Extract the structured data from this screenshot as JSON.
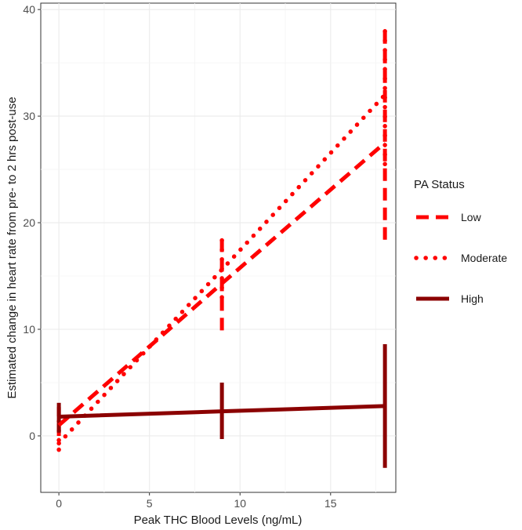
{
  "chart_data": {
    "type": "line",
    "title": "",
    "xlabel": "Peak THC Blood Levels (ng/mL)",
    "ylabel": "Estimated change in heart rate from pre- to 2 hrs post-use",
    "xlim": [
      -1,
      18.6
    ],
    "ylim": [
      -5.3,
      40.6
    ],
    "x_ticks": [
      0,
      5,
      10,
      15
    ],
    "y_ticks": [
      0,
      10,
      20,
      30,
      40
    ],
    "grid": true,
    "legend": {
      "title": "PA Status",
      "placement": "right",
      "entries": [
        "Low",
        "Moderate",
        "High"
      ]
    },
    "series": [
      {
        "name": "Low",
        "color": "#ff0000",
        "linestyle": "dashed",
        "x": [
          0,
          9,
          18
        ],
        "y": [
          1.0,
          14.3,
          27.5
        ],
        "error_bars": [
          [
            0,
            2.7
          ],
          [
            9.9,
            19.0
          ],
          [
            18.4,
            38.5
          ]
        ]
      },
      {
        "name": "Moderate",
        "color": "#ff0000",
        "linestyle": "dotted",
        "x": [
          0,
          9,
          18
        ],
        "y": [
          -0.7,
          15.6,
          32.0
        ],
        "error_bars": [
          [
            -1.3,
            1.8
          ],
          [
            13.0,
            18.6
          ],
          [
            25.5,
            38.7
          ]
        ]
      },
      {
        "name": "High",
        "color": "#8b0000",
        "linestyle": "solid",
        "x": [
          0,
          9,
          18
        ],
        "y": [
          1.8,
          2.3,
          2.8
        ],
        "error_bars": [
          [
            0.3,
            3.1
          ],
          [
            -0.3,
            5.0
          ],
          [
            -3.0,
            8.6
          ]
        ]
      }
    ]
  }
}
